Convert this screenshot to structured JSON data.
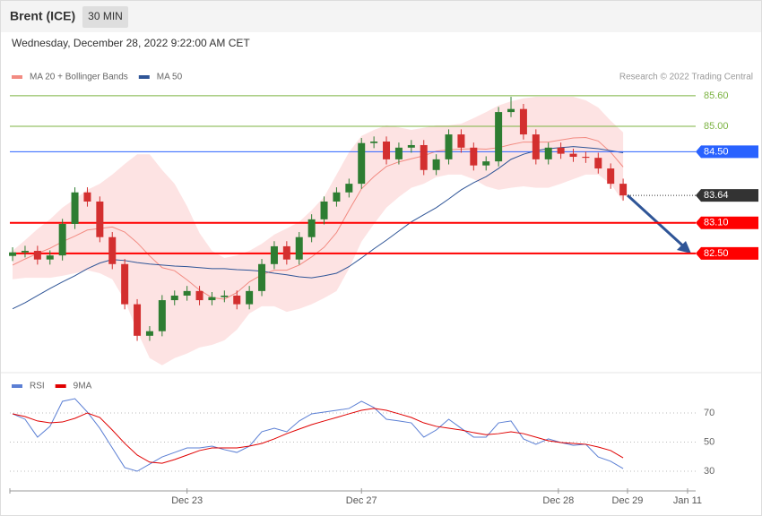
{
  "header": {
    "title": "Brent (ICE)",
    "interval": "30 MIN",
    "date": "Wednesday, December 28, 2022 9:22:00 AM CET",
    "credit": "Research © 2022 Trading Central"
  },
  "chart_data": [
    {
      "type": "candlestick",
      "x": [
        0,
        1,
        2,
        3,
        4,
        5,
        6,
        7,
        8,
        9,
        10,
        11,
        12,
        13,
        14,
        15,
        16,
        17,
        18,
        19,
        20,
        21,
        22,
        23,
        24,
        25,
        26,
        27,
        28,
        29,
        30,
        31,
        32,
        33,
        34,
        35,
        36,
        37,
        38,
        39,
        40,
        41,
        42,
        43,
        44,
        45,
        46,
        47,
        48,
        49
      ],
      "open": [
        82.45,
        82.52,
        82.55,
        82.38,
        82.46,
        83.08,
        83.7,
        83.52,
        82.82,
        82.29,
        81.5,
        80.88,
        80.97,
        81.58,
        81.67,
        81.76,
        81.58,
        81.64,
        81.67,
        81.5,
        81.76,
        82.29,
        82.64,
        82.38,
        82.82,
        83.17,
        83.52,
        83.7,
        83.87,
        84.67,
        84.7,
        84.35,
        84.58,
        84.63,
        84.14,
        84.35,
        84.84,
        84.58,
        84.23,
        84.31,
        85.28,
        85.34,
        84.84,
        84.35,
        84.58,
        84.46,
        84.4,
        84.38,
        84.17,
        83.87
      ],
      "high": [
        82.62,
        82.65,
        82.65,
        82.56,
        83.18,
        83.8,
        83.8,
        83.62,
        82.92,
        82.39,
        81.6,
        81.07,
        81.68,
        81.77,
        81.86,
        81.86,
        81.74,
        81.77,
        81.77,
        81.86,
        82.39,
        82.74,
        82.74,
        82.92,
        83.27,
        83.62,
        83.8,
        83.97,
        84.77,
        84.8,
        84.8,
        84.68,
        84.73,
        84.73,
        84.45,
        84.94,
        84.94,
        84.68,
        84.41,
        85.38,
        85.58,
        85.44,
        84.94,
        84.68,
        84.68,
        84.56,
        84.5,
        84.48,
        84.27,
        83.97
      ],
      "low": [
        82.35,
        82.42,
        82.28,
        82.28,
        82.36,
        82.98,
        83.42,
        82.72,
        82.19,
        81.4,
        80.78,
        80.78,
        80.87,
        81.48,
        81.57,
        81.48,
        81.48,
        81.54,
        81.4,
        81.4,
        81.66,
        82.19,
        82.28,
        82.28,
        82.72,
        83.07,
        83.42,
        83.6,
        83.77,
        84.57,
        84.25,
        84.25,
        84.48,
        84.04,
        84.04,
        84.25,
        84.48,
        84.13,
        84.13,
        84.21,
        85.18,
        84.74,
        84.25,
        84.25,
        84.36,
        84.3,
        84.28,
        84.07,
        83.77,
        83.54
      ],
      "close": [
        82.52,
        82.55,
        82.38,
        82.46,
        83.08,
        83.7,
        83.52,
        82.82,
        82.29,
        81.5,
        80.88,
        80.97,
        81.58,
        81.67,
        81.76,
        81.58,
        81.64,
        81.67,
        81.5,
        81.76,
        82.29,
        82.64,
        82.38,
        82.82,
        83.17,
        83.52,
        83.7,
        83.87,
        84.67,
        84.7,
        84.35,
        84.58,
        84.63,
        84.14,
        84.35,
        84.84,
        84.58,
        84.23,
        84.31,
        85.28,
        85.34,
        84.84,
        84.35,
        84.58,
        84.46,
        84.4,
        84.38,
        84.17,
        83.87,
        83.64
      ],
      "up_color": "#2e7d32",
      "down_color": "#d32f2f",
      "series": [
        {
          "name": "MA 20 + Bollinger Bands",
          "color": "#f28b82",
          "band_color": "#fde3e3",
          "values": [
            82.27,
            82.39,
            82.5,
            82.6,
            82.73,
            82.84,
            82.96,
            82.99,
            83.02,
            82.92,
            82.71,
            82.45,
            82.22,
            82.16,
            81.98,
            81.78,
            81.63,
            81.6,
            81.73,
            81.94,
            82.08,
            82.17,
            82.17,
            82.27,
            82.43,
            82.62,
            82.91,
            83.35,
            83.77,
            84.01,
            84.21,
            84.3,
            84.36,
            84.42,
            84.51,
            84.54,
            84.55,
            84.56,
            84.55,
            84.58,
            84.64,
            84.69,
            84.69,
            84.69,
            84.73,
            84.77,
            84.78,
            84.71,
            84.49,
            84.2
          ],
          "upper": [
            82.55,
            82.76,
            82.98,
            83.17,
            83.4,
            83.57,
            83.75,
            83.87,
            84.05,
            84.26,
            84.45,
            84.45,
            84.14,
            83.87,
            83.43,
            82.9,
            82.55,
            82.41,
            82.46,
            82.55,
            82.69,
            82.87,
            82.99,
            83.12,
            83.35,
            83.61,
            84.05,
            84.49,
            84.81,
            84.93,
            85.02,
            84.98,
            84.93,
            84.97,
            85.02,
            85.02,
            85.05,
            85.16,
            85.28,
            85.41,
            85.49,
            85.55,
            85.58,
            85.58,
            85.58,
            85.58,
            85.51,
            85.37,
            85.11,
            84.88
          ],
          "lower": [
            81.99,
            82.02,
            82.02,
            82.02,
            82.06,
            82.11,
            82.17,
            82.11,
            81.99,
            81.58,
            80.97,
            80.44,
            80.3,
            80.44,
            80.53,
            80.65,
            80.7,
            80.79,
            81.0,
            81.32,
            81.46,
            81.46,
            81.35,
            81.41,
            81.5,
            81.62,
            81.76,
            82.2,
            82.73,
            83.08,
            83.4,
            83.61,
            83.79,
            83.87,
            84.0,
            84.05,
            84.05,
            83.96,
            83.82,
            83.75,
            83.79,
            83.82,
            83.79,
            83.79,
            83.87,
            83.96,
            84.05,
            84.05,
            83.87,
            83.52
          ]
        },
        {
          "name": "MA 50",
          "color": "#2f5597",
          "values": [
            81.41,
            81.53,
            81.67,
            81.81,
            81.94,
            82.06,
            82.2,
            82.31,
            82.38,
            82.36,
            82.32,
            82.29,
            82.27,
            82.25,
            82.24,
            82.22,
            82.2,
            82.2,
            82.18,
            82.17,
            82.15,
            82.11,
            82.08,
            82.04,
            82.02,
            82.06,
            82.11,
            82.24,
            82.41,
            82.59,
            82.76,
            82.94,
            83.12,
            83.26,
            83.4,
            83.57,
            83.75,
            83.89,
            84.01,
            84.17,
            84.35,
            84.45,
            84.52,
            84.56,
            84.58,
            84.6,
            84.58,
            84.56,
            84.52,
            84.48
          ]
        }
      ],
      "levels": [
        {
          "value": 85.6,
          "label": "85.60",
          "color": "#7cb342",
          "boxed": false,
          "width": 1
        },
        {
          "value": 85.0,
          "label": "85.00",
          "color": "#7cb342",
          "boxed": false,
          "width": 1
        },
        {
          "value": 84.5,
          "label": "84.50",
          "color": "#2962ff",
          "boxed": true,
          "width": 1
        },
        {
          "value": 83.64,
          "label": "83.64",
          "color": "#333333",
          "boxed": true,
          "width": 1,
          "dotted": true
        },
        {
          "value": 83.1,
          "label": "83.10",
          "color": "#ff0000",
          "boxed": true,
          "width": 2
        },
        {
          "value": 82.5,
          "label": "82.50",
          "color": "#ff0000",
          "boxed": true,
          "width": 2
        }
      ],
      "xlim": [
        -0.22,
        54.82
      ],
      "ylim": [
        80.26,
        85.81
      ]
    },
    {
      "type": "line",
      "x": [
        0,
        1,
        2,
        3,
        4,
        5,
        6,
        7,
        8,
        9,
        10,
        11,
        12,
        13,
        14,
        15,
        16,
        17,
        18,
        19,
        20,
        21,
        22,
        23,
        24,
        25,
        26,
        27,
        28,
        29,
        30,
        31,
        32,
        33,
        34,
        35,
        36,
        37,
        38,
        39,
        40,
        41,
        42,
        43,
        44,
        45,
        46,
        47,
        48,
        49
      ],
      "series": [
        {
          "name": "RSI",
          "color": "#5b7fd4",
          "values": [
            69.4,
            65.7,
            53.4,
            60.8,
            78.0,
            79.8,
            70.6,
            59.5,
            46.0,
            32.5,
            30.0,
            34.9,
            39.8,
            42.9,
            46.0,
            46.0,
            47.2,
            44.8,
            42.9,
            47.2,
            57.1,
            59.5,
            57.1,
            64.5,
            69.4,
            70.6,
            71.8,
            73.1,
            78.0,
            73.7,
            65.7,
            64.5,
            63.2,
            53.4,
            58.3,
            65.7,
            59.5,
            53.4,
            53.4,
            63.2,
            64.5,
            52.2,
            48.5,
            52.2,
            49.7,
            47.8,
            48.5,
            39.8,
            36.8,
            31.8
          ]
        },
        {
          "name": "9MA",
          "color": "#e00000",
          "values": [
            69.4,
            67.5,
            64.5,
            63.2,
            63.8,
            66.3,
            70.0,
            66.9,
            58.3,
            49.1,
            41.1,
            36.2,
            35.5,
            38.0,
            41.1,
            44.2,
            46.0,
            46.0,
            46.0,
            47.2,
            49.1,
            52.2,
            55.8,
            58.9,
            62.0,
            64.5,
            66.9,
            69.4,
            71.8,
            73.1,
            71.8,
            69.4,
            66.9,
            63.2,
            60.8,
            59.5,
            58.3,
            56.5,
            55.1,
            55.8,
            57.1,
            55.8,
            53.4,
            50.9,
            49.7,
            49.1,
            48.5,
            46.6,
            44.2,
            39.2
          ]
        }
      ],
      "xlim": [
        -0.22,
        54.82
      ],
      "ylim": [
        21.4,
        82.9
      ],
      "yticks": [
        70,
        50,
        30
      ],
      "xticks": [
        {
          "value": 14,
          "label": "Dec 23"
        },
        {
          "value": 28,
          "label": "Dec 27"
        },
        {
          "value": 43.8,
          "label": "Dec 28"
        },
        {
          "value": 49.35,
          "label": "Dec 29"
        },
        {
          "value": 54.17,
          "label": "Jan 11"
        }
      ]
    }
  ]
}
